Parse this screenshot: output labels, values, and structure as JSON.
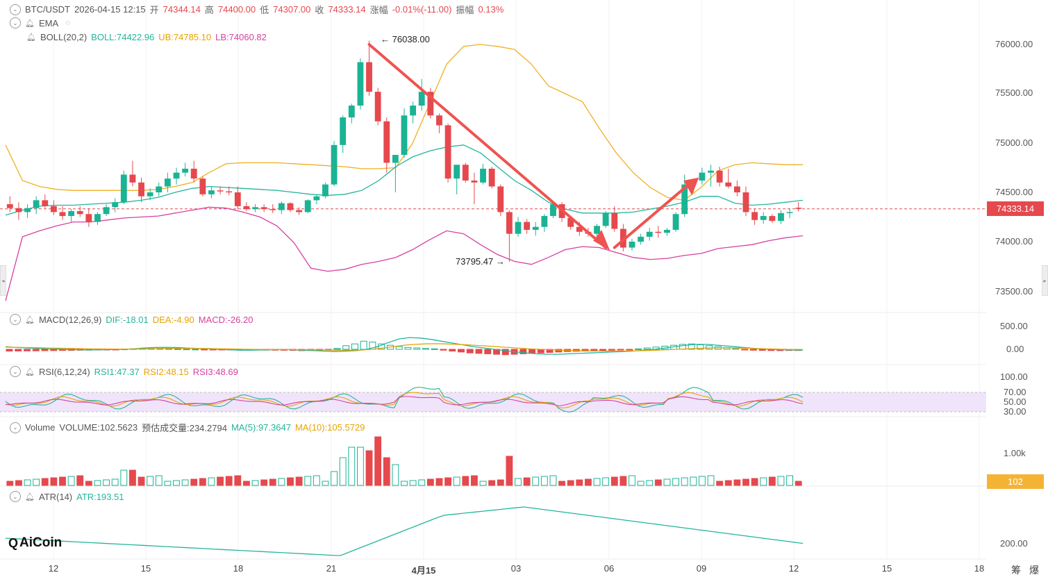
{
  "header": {
    "symbol": "BTC/USDT",
    "datetime": "2026-04-15 12:15",
    "open_label": "开",
    "open": "74344.14",
    "high_label": "高",
    "high": "74400.00",
    "low_label": "低",
    "low": "74307.00",
    "close_label": "收",
    "close": "74333.14",
    "change_label": "涨幅",
    "change": "-0.01%(-11.00)",
    "amp_label": "振幅",
    "amp": "0.13%"
  },
  "indicators": {
    "ema": {
      "label": "EMA"
    },
    "boll": {
      "label": "BOLL(20,2)",
      "boll": "BOLL:74422.96",
      "ub": "UB:74785.10",
      "lb": "LB:74060.82"
    },
    "macd": {
      "label": "MACD(12,26,9)",
      "dif": "DIF:-18.01",
      "dea": "DEA:-4.90",
      "macd": "MACD:-26.20"
    },
    "rsi": {
      "label": "RSI(6,12,24)",
      "rsi1": "RSI1:47.37",
      "rsi2": "RSI2:48.15",
      "rsi3": "RSI3:48.69"
    },
    "volume": {
      "label": "Volume",
      "vol": "VOLUME:102.5623",
      "est": "预估成交量:234.2794",
      "ma5": "MA(5):97.3647",
      "ma10": "MA(10):105.5729"
    },
    "atr": {
      "label": "ATR(14)",
      "atr": "ATR:193.51"
    }
  },
  "annotations": {
    "high_marker": "76038.00",
    "low_marker": "73795.47"
  },
  "price_axis": [
    "76000.00",
    "75500.00",
    "75000.00",
    "74500.00",
    "74000.00",
    "73500.00"
  ],
  "current_price": "74333.14",
  "macd_axis": [
    "500.00",
    "0.00"
  ],
  "rsi_axis": [
    "100.00",
    "70.00",
    "50.00",
    "30.00"
  ],
  "volume_axis": [
    "1.00k"
  ],
  "volume_current": "102",
  "atr_axis": [
    "200.00"
  ],
  "x_axis": [
    "12",
    "15",
    "18",
    "21",
    "4月15",
    "03",
    "06",
    "09",
    "12",
    "15",
    "18"
  ],
  "bottom_right": [
    "筹",
    "爆"
  ],
  "logo": {
    "mark": "Q",
    "name": "AiCoin"
  },
  "colors": {
    "up": "#1ab394",
    "down": "#e5484d",
    "boll_mid": "#23b59b",
    "boll_up": "#f0b020",
    "boll_low": "#d6409f",
    "rsi_band": "#f0e4fa"
  },
  "chart_data": {
    "type": "candlestick",
    "xlabel": "",
    "ylabel": "",
    "ylim": [
      73300,
      76300
    ],
    "candles_ohlc": [
      [
        74380,
        74460,
        74300,
        74340
      ],
      [
        74340,
        74400,
        74220,
        74300
      ],
      [
        74300,
        74380,
        74240,
        74340
      ],
      [
        74340,
        74460,
        74280,
        74420
      ],
      [
        74420,
        74480,
        74340,
        74360
      ],
      [
        74360,
        74420,
        74270,
        74300
      ],
      [
        74300,
        74360,
        74220,
        74260
      ],
      [
        74260,
        74330,
        74200,
        74310
      ],
      [
        74310,
        74360,
        74250,
        74280
      ],
      [
        74280,
        74340,
        74150,
        74200
      ],
      [
        74200,
        74300,
        74170,
        74280
      ],
      [
        74280,
        74380,
        74260,
        74350
      ],
      [
        74350,
        74440,
        74300,
        74400
      ],
      [
        74400,
        74720,
        74380,
        74680
      ],
      [
        74680,
        74820,
        74560,
        74600
      ],
      [
        74600,
        74650,
        74400,
        74460
      ],
      [
        74460,
        74540,
        74420,
        74500
      ],
      [
        74500,
        74600,
        74460,
        74560
      ],
      [
        74560,
        74700,
        74500,
        74640
      ],
      [
        74640,
        74750,
        74580,
        74700
      ],
      [
        74700,
        74800,
        74660,
        74740
      ],
      [
        74740,
        74820,
        74600,
        74640
      ],
      [
        74640,
        74660,
        74460,
        74480
      ],
      [
        74480,
        74560,
        74440,
        74520
      ],
      [
        74520,
        74560,
        74480,
        74510
      ],
      [
        74510,
        74560,
        74470,
        74500
      ],
      [
        74500,
        74560,
        74330,
        74360
      ],
      [
        74360,
        74400,
        74310,
        74330
      ],
      [
        74330,
        74380,
        74300,
        74350
      ],
      [
        74350,
        74380,
        74300,
        74330
      ],
      [
        74330,
        74380,
        74290,
        74320
      ],
      [
        74320,
        74410,
        74280,
        74390
      ],
      [
        74390,
        74400,
        74300,
        74320
      ],
      [
        74320,
        74350,
        74270,
        74300
      ],
      [
        74300,
        74430,
        74290,
        74420
      ],
      [
        74420,
        74480,
        74380,
        74460
      ],
      [
        74460,
        74600,
        74440,
        74580
      ],
      [
        74580,
        75020,
        74560,
        74980
      ],
      [
        74980,
        75280,
        74900,
        75260
      ],
      [
        75260,
        75400,
        75200,
        75380
      ],
      [
        75380,
        75860,
        75340,
        75820
      ],
      [
        75820,
        76038,
        75480,
        75520
      ],
      [
        75520,
        75560,
        75180,
        75220
      ],
      [
        75220,
        75260,
        74700,
        74800
      ],
      [
        74800,
        74850,
        74500,
        74880
      ],
      [
        74880,
        75350,
        74850,
        75280
      ],
      [
        75280,
        75420,
        75200,
        75380
      ],
      [
        75380,
        75650,
        75330,
        75520
      ],
      [
        75520,
        75560,
        75250,
        75280
      ],
      [
        75280,
        75300,
        75100,
        75180
      ],
      [
        75180,
        75200,
        74600,
        74640
      ],
      [
        74640,
        74720,
        74480,
        74780
      ],
      [
        74780,
        74800,
        74600,
        74620
      ],
      [
        74620,
        74700,
        74380,
        74600
      ],
      [
        74600,
        74790,
        74580,
        74740
      ],
      [
        74740,
        74760,
        74540,
        74560
      ],
      [
        74560,
        74580,
        74260,
        74300
      ],
      [
        74300,
        74320,
        73795,
        74080
      ],
      [
        74080,
        74250,
        74050,
        74200
      ],
      [
        74200,
        74230,
        74080,
        74120
      ],
      [
        74120,
        74200,
        74060,
        74150
      ],
      [
        74150,
        74280,
        74100,
        74260
      ],
      [
        74260,
        74400,
        74240,
        74380
      ],
      [
        74380,
        74400,
        74200,
        74240
      ],
      [
        74240,
        74260,
        74120,
        74150
      ],
      [
        74150,
        74200,
        74060,
        74100
      ],
      [
        74100,
        74140,
        74050,
        74080
      ],
      [
        74080,
        74180,
        74060,
        74160
      ],
      [
        74160,
        74310,
        74140,
        74290
      ],
      [
        74290,
        74360,
        74100,
        74130
      ],
      [
        74130,
        74180,
        73900,
        73940
      ],
      [
        73940,
        74030,
        73910,
        74000
      ],
      [
        74000,
        74080,
        73970,
        74050
      ],
      [
        74050,
        74140,
        74010,
        74100
      ],
      [
        74100,
        74160,
        74040,
        74090
      ],
      [
        74090,
        74140,
        74060,
        74120
      ],
      [
        74120,
        74300,
        74100,
        74280
      ],
      [
        74280,
        74680,
        74250,
        74580
      ],
      [
        74580,
        74640,
        74500,
        74620
      ],
      [
        74620,
        74750,
        74580,
        74700
      ],
      [
        74700,
        74780,
        74560,
        74720
      ],
      [
        74720,
        74760,
        74560,
        74600
      ],
      [
        74600,
        74740,
        74540,
        74560
      ],
      [
        74560,
        74620,
        74460,
        74500
      ],
      [
        74500,
        74560,
        74260,
        74300
      ],
      [
        74300,
        74330,
        74170,
        74220
      ],
      [
        74220,
        74300,
        74180,
        74260
      ],
      [
        74260,
        74280,
        74190,
        74210
      ],
      [
        74210,
        74320,
        74180,
        74290
      ],
      [
        74290,
        74340,
        74240,
        74300
      ],
      [
        74344,
        74400,
        74307,
        74333
      ]
    ],
    "boll_ub": [
      74980,
      74620,
      74560,
      74530,
      74520,
      74520,
      74520,
      74520,
      74520,
      74530,
      74560,
      74600,
      74700,
      74790,
      74800,
      74800,
      74800,
      74790,
      74780,
      74770,
      74760,
      74740,
      74740,
      74750,
      75000,
      75400,
      75800,
      75980,
      76000,
      75980,
      75950,
      75800,
      75580,
      75500,
      75420,
      75150,
      74900,
      74700,
      74550,
      74450,
      74420,
      74550,
      74720,
      74780,
      74800,
      74790,
      74780,
      74780
    ],
    "boll_mid": [
      74270,
      74320,
      74360,
      74370,
      74370,
      74380,
      74390,
      74400,
      74420,
      74450,
      74500,
      74540,
      74560,
      74550,
      74540,
      74530,
      74520,
      74500,
      74480,
      74470,
      74480,
      74520,
      74620,
      74760,
      74860,
      74920,
      74960,
      74980,
      74900,
      74760,
      74620,
      74520,
      74400,
      74330,
      74290,
      74290,
      74290,
      74300,
      74330,
      74360,
      74400,
      74460,
      74460,
      74390,
      74370,
      74380,
      74400,
      74420
    ],
    "boll_lb": [
      73400,
      74050,
      74110,
      74160,
      74200,
      74200,
      74220,
      74240,
      74250,
      74260,
      74290,
      74320,
      74350,
      74340,
      74300,
      74250,
      74160,
      73990,
      73730,
      73700,
      73720,
      73770,
      73800,
      73840,
      73920,
      74020,
      74110,
      74080,
      73970,
      73870,
      73800,
      73770,
      73840,
      73920,
      73950,
      73940,
      73890,
      73840,
      73820,
      73830,
      73860,
      73880,
      73930,
      73950,
      73970,
      74010,
      74040,
      74060
    ],
    "macd_hist": [
      -40,
      -38,
      -36,
      -34,
      -30,
      -28,
      -26,
      -24,
      -20,
      -18,
      -14,
      -10,
      -6,
      6,
      12,
      16,
      18,
      18,
      14,
      10,
      6,
      2,
      -2,
      -4,
      -6,
      -10,
      -12,
      -14,
      -16,
      -18,
      -20,
      -22,
      -24,
      -30,
      -24,
      -20,
      -10,
      20,
      80,
      120,
      180,
      160,
      120,
      90,
      60,
      40,
      30,
      20,
      10,
      -20,
      -40,
      -60,
      -80,
      -90,
      -100,
      -110,
      -120,
      -110,
      -100,
      -90,
      -80,
      -70,
      -60,
      -50,
      -45,
      -40,
      -35,
      -30,
      -20,
      -10,
      -5,
      10,
      30,
      50,
      70,
      90,
      110,
      120,
      100,
      80,
      60,
      40,
      20,
      -10,
      -20,
      -25,
      -28,
      -30,
      -26,
      -26
    ],
    "macd_dif": [
      60,
      40,
      30,
      20,
      10,
      5,
      -5,
      -10,
      -15,
      -10,
      -5,
      0,
      10,
      30,
      40,
      45,
      40,
      30,
      20,
      10,
      0,
      -10,
      -20,
      -20,
      -15,
      -10,
      -5,
      -10,
      -20,
      -30,
      -40,
      -50,
      -40,
      -30,
      0,
      60,
      150,
      230,
      260,
      250,
      220,
      180,
      140,
      100,
      60,
      30,
      0,
      -30,
      -60,
      -80,
      -100,
      -110,
      -110,
      -100,
      -90,
      -80,
      -70,
      -60,
      -50,
      -40,
      -20,
      0,
      30,
      60,
      90,
      110,
      110,
      90,
      70,
      50,
      30,
      10,
      0,
      -10,
      -15,
      -18
    ],
    "macd_dea": [
      50,
      45,
      40,
      35,
      30,
      25,
      20,
      15,
      10,
      8,
      6,
      5,
      6,
      10,
      15,
      20,
      22,
      22,
      20,
      18,
      14,
      10,
      5,
      0,
      -2,
      -4,
      -5,
      -6,
      -8,
      -10,
      -14,
      -18,
      -20,
      -20,
      -15,
      0,
      30,
      60,
      90,
      110,
      120,
      125,
      120,
      110,
      100,
      85,
      70,
      55,
      40,
      25,
      10,
      0,
      -10,
      -20,
      -28,
      -34,
      -38,
      -40,
      -40,
      -38,
      -34,
      -28,
      -20,
      -10,
      0,
      10,
      20,
      28,
      32,
      32,
      28,
      22,
      15,
      8,
      2,
      -4,
      -5
    ]
  }
}
